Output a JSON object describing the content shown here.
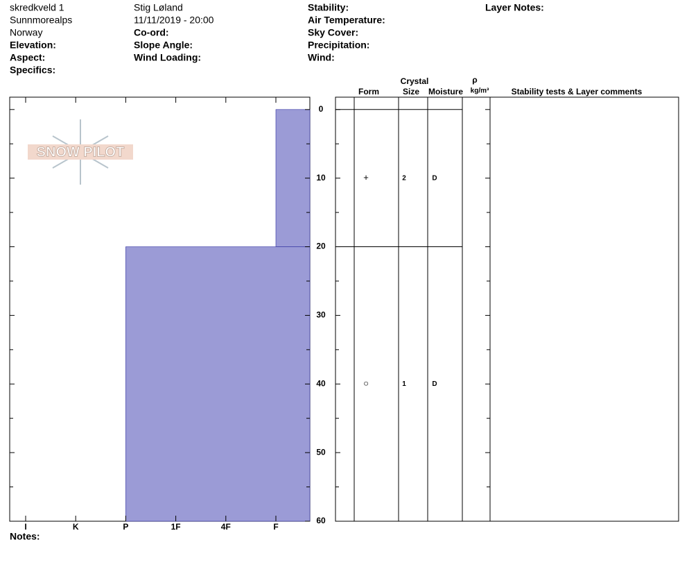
{
  "header": {
    "site": "skredkveld 1",
    "area": "Sunnmorealps",
    "country": "Norway",
    "elevation": "Elevation:",
    "aspect": "Aspect:",
    "specifics": "Specifics:",
    "observer": "Stig Løland",
    "datetime": "11/11/2019 - 20:00",
    "coord": "Co-ord:",
    "slope_angle": "Slope Angle:",
    "wind_loading": "Wind Loading:",
    "stability": "Stability:",
    "air_temperature": "Air Temperature:",
    "sky_cover": "Sky Cover:",
    "precipitation": "Precipitation:",
    "wind": "Wind:",
    "layer_notes": "Layer Notes:"
  },
  "notes": "Notes:",
  "logo": "SNOW PILOT",
  "chart_data": {
    "type": "snow-profile",
    "hardness_categories": [
      "I",
      "K",
      "P",
      "1F",
      "4F",
      "F"
    ],
    "ylim": [
      -1.8,
      60
    ],
    "yticks": [
      0,
      10,
      20,
      30,
      40,
      50,
      60
    ],
    "minor_yticks": [
      5,
      15,
      25,
      35,
      45,
      55
    ],
    "color": "#9b9bd6",
    "columns": {
      "crystal": "Crystal",
      "form": "Form",
      "size": "Size",
      "moisture": "Moisture",
      "density_symbol": "ρ",
      "density_unit": "kg/m³",
      "comments": "Stability tests & Layer comments"
    },
    "layers": [
      {
        "top": 0,
        "bottom": 20,
        "hardness": "F",
        "form": "+",
        "size": 2,
        "moisture": "D"
      },
      {
        "top": 20,
        "bottom": 60,
        "hardness": "P",
        "form": "○",
        "size": 1,
        "moisture": "D"
      }
    ]
  }
}
